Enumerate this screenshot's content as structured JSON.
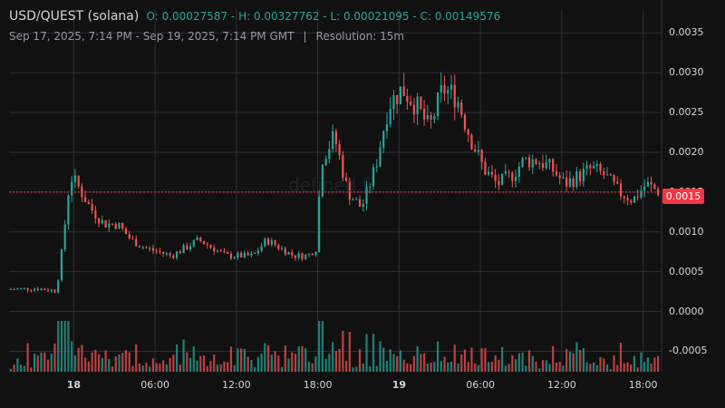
{
  "header": {
    "symbol": "USD/QUEST (solana)",
    "ohlc": "O: 0.00027587 - H: 0.00327762 - L: 0.00021095 - C: 0.00149576",
    "range": "Sep 17, 2025, 7:14 PM - Sep 19, 2025, 7:14 PM GMT",
    "separator": "|",
    "resolution": "Resolution: 15m"
  },
  "watermark": "defined.fi",
  "price_tag": "0.0015",
  "colors": {
    "up": "#26a69a",
    "down": "#ef5350",
    "price_line": "#f23645",
    "grid": "#2a2e39"
  },
  "chart_data": {
    "type": "candlestick",
    "yticks": [
      "0.0035",
      "0.0030",
      "0.0025",
      "0.0020",
      "0.0015",
      "0.0010",
      "0.0005",
      "0.0000",
      "-0.0005"
    ],
    "ylim": [
      -0.0007,
      0.0038
    ],
    "xticks": [
      {
        "label": "18",
        "bold": true,
        "t": 4.77
      },
      {
        "label": "06:00",
        "bold": false,
        "t": 10.77
      },
      {
        "label": "12:00",
        "bold": false,
        "t": 16.77
      },
      {
        "label": "18:00",
        "bold": false,
        "t": 22.77
      },
      {
        "label": "19",
        "bold": true,
        "t": 28.77
      },
      {
        "label": "06:00",
        "bold": false,
        "t": 34.77
      },
      {
        "label": "12:00",
        "bold": false,
        "t": 40.77
      },
      {
        "label": "18:00",
        "bold": false,
        "t": 46.77
      }
    ],
    "last_price": 0.0015,
    "ohlc_keypoints": [
      [
        0,
        0.00028
      ],
      [
        2,
        0.00029
      ],
      [
        3.5,
        0.00026
      ],
      [
        4,
        0.0009
      ],
      [
        4.5,
        0.0017
      ],
      [
        5,
        0.0016
      ],
      [
        6,
        0.0013
      ],
      [
        7,
        0.0011
      ],
      [
        8,
        0.0011
      ],
      [
        9,
        0.0009
      ],
      [
        10,
        0.0008
      ],
      [
        12,
        0.0007
      ],
      [
        13,
        0.0008
      ],
      [
        14,
        0.0009
      ],
      [
        15,
        0.0008
      ],
      [
        16,
        0.0007
      ],
      [
        17,
        0.0007
      ],
      [
        18,
        0.0007
      ],
      [
        19,
        0.0009
      ],
      [
        20,
        0.0008
      ],
      [
        21,
        0.0007
      ],
      [
        22,
        0.0007
      ],
      [
        22.7,
        0.0008
      ],
      [
        23,
        0.0019
      ],
      [
        24,
        0.0022
      ],
      [
        25,
        0.0015
      ],
      [
        26,
        0.0013
      ],
      [
        27,
        0.0018
      ],
      [
        28,
        0.0026
      ],
      [
        29,
        0.0028
      ],
      [
        30,
        0.0026
      ],
      [
        31,
        0.0023
      ],
      [
        32,
        0.0028
      ],
      [
        33,
        0.0027
      ],
      [
        34,
        0.0022
      ],
      [
        35,
        0.0018
      ],
      [
        36,
        0.0016
      ],
      [
        37,
        0.0017
      ],
      [
        38,
        0.0019
      ],
      [
        39,
        0.0019
      ],
      [
        40,
        0.0018
      ],
      [
        41,
        0.0016
      ],
      [
        42,
        0.0017
      ],
      [
        43,
        0.0018
      ],
      [
        44,
        0.0017
      ],
      [
        45,
        0.0015
      ],
      [
        46,
        0.0014
      ],
      [
        47,
        0.0016
      ],
      [
        48,
        0.0015
      ]
    ]
  }
}
